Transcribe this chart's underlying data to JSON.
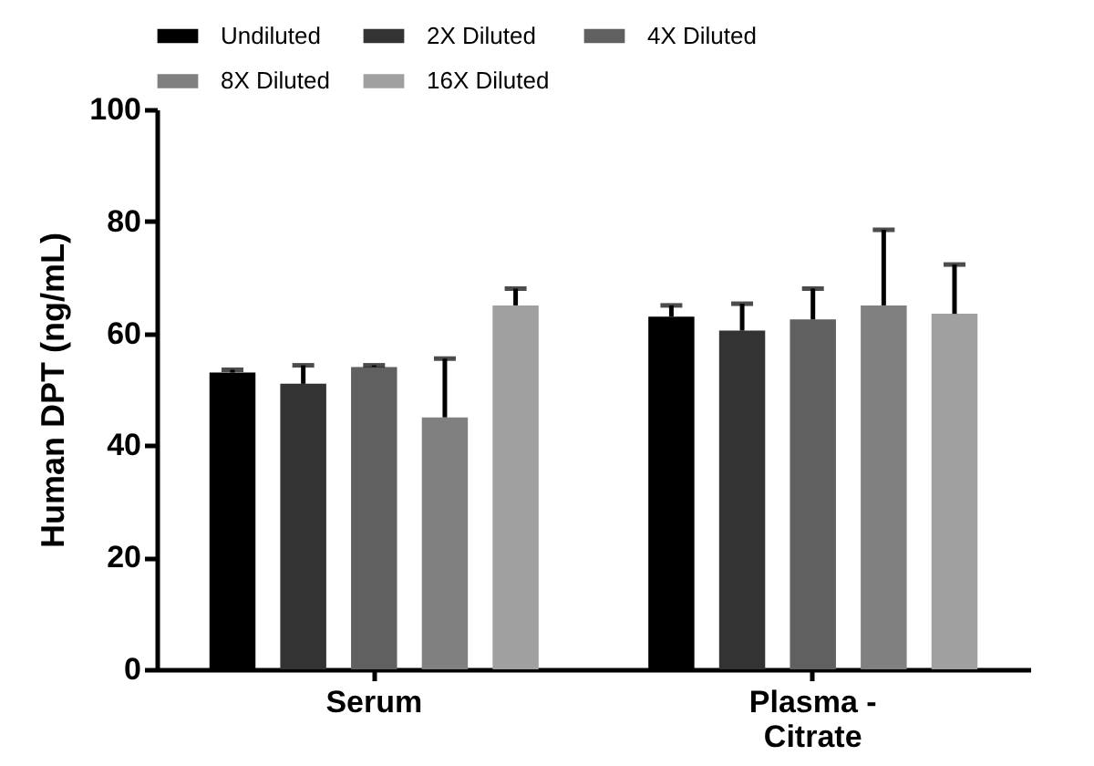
{
  "chart_data": {
    "type": "bar",
    "ylabel": "Human DPT (ng/mL)",
    "categories": [
      "Serum",
      "Plasma - Citrate"
    ],
    "series": [
      {
        "name": "Undiluted",
        "color": "#000000",
        "values": [
          53,
          63
        ],
        "errors": [
          [
            53,
            53.5
          ],
          [
            63,
            65
          ]
        ]
      },
      {
        "name": "2X Diluted",
        "color": "#333333",
        "values": [
          51,
          60.5
        ],
        "errors": [
          [
            51,
            54.3
          ],
          [
            60.5,
            65.3
          ]
        ]
      },
      {
        "name": "4X Diluted",
        "color": "#606060",
        "values": [
          54,
          62.5
        ],
        "errors": [
          [
            54,
            54.3
          ],
          [
            62.5,
            68
          ]
        ]
      },
      {
        "name": "8X Diluted",
        "color": "#808080",
        "values": [
          45,
          65
        ],
        "errors": [
          [
            45,
            55.5
          ],
          [
            65,
            78.5
          ]
        ]
      },
      {
        "name": "16X Diluted",
        "color": "#a0a0a0",
        "values": [
          65,
          63.5
        ],
        "errors": [
          [
            65,
            68
          ],
          [
            63.5,
            72.3
          ]
        ]
      }
    ],
    "ylim": [
      0,
      100
    ],
    "yticks": [
      0,
      20,
      40,
      60,
      80,
      100
    ],
    "grid": false,
    "legend": "top"
  }
}
